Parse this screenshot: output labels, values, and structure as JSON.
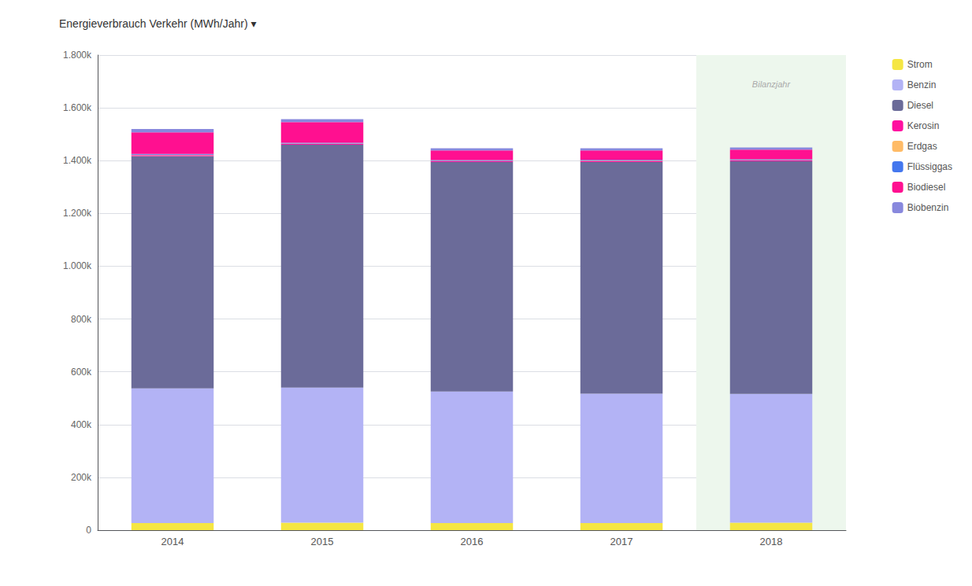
{
  "chart_data": {
    "type": "bar",
    "stacked": true,
    "title": "Energieverbrauch Verkehr (MWh/Jahr) ▾",
    "categories": [
      "2014",
      "2015",
      "2016",
      "2017",
      "2018"
    ],
    "series": [
      {
        "name": "Strom",
        "color": "#f5e642",
        "values": [
          27000,
          28000,
          27000,
          27000,
          28000
        ]
      },
      {
        "name": "Benzin",
        "color": "#b3b3f5",
        "values": [
          510000,
          512000,
          498000,
          490000,
          488000
        ]
      },
      {
        "name": "Diesel",
        "color": "#6b6b99",
        "values": [
          880000,
          920000,
          870000,
          878000,
          882000
        ]
      },
      {
        "name": "Kerosin",
        "color": "#ff10a0",
        "values": [
          3500,
          3500,
          3000,
          3500,
          3000
        ]
      },
      {
        "name": "Erdgas",
        "color": "#ffbb66",
        "values": [
          1500,
          1500,
          1500,
          1500,
          1500
        ]
      },
      {
        "name": "Flüssiggas",
        "color": "#4477ee",
        "values": [
          3000,
          3000,
          3000,
          3000,
          3000
        ]
      },
      {
        "name": "Biodiesel",
        "color": "#ff1090",
        "values": [
          82000,
          78000,
          36000,
          36000,
          36000
        ]
      },
      {
        "name": "Biobenzin",
        "color": "#8888dd",
        "values": [
          13000,
          11000,
          8000,
          8000,
          8000
        ]
      }
    ],
    "annotations": [
      {
        "text": "Bilanzjahr",
        "x": "2018",
        "y": 1690000,
        "color": "#edf7ed"
      }
    ],
    "ylim": [
      0,
      1800000
    ],
    "yticks": [
      0,
      {
        "value": 200000,
        "label": "200k"
      },
      {
        "value": 400000,
        "label": "400k"
      },
      {
        "value": 600000,
        "label": "600k"
      },
      {
        "value": 800000,
        "label": "800k"
      },
      {
        "value": 1000000,
        "label": "1.000k"
      },
      {
        "value": 1200000,
        "label": "1.200k"
      },
      {
        "value": 1400000,
        "label": "1.400k"
      },
      {
        "value": 1600000,
        "label": "1.600k"
      },
      {
        "value": 1800000,
        "label": "1.800k"
      }
    ],
    "grid": true,
    "legend": "right"
  }
}
